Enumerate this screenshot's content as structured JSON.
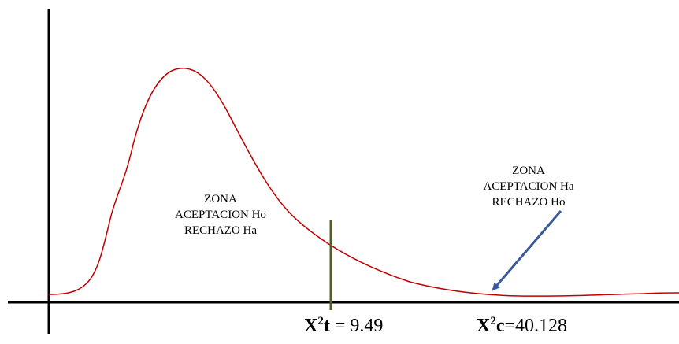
{
  "zones": {
    "acceptance_ho": {
      "line1": "ZONA",
      "line2": "ACEPTACION Ho",
      "line3": "RECHAZO Ha"
    },
    "acceptance_ha": {
      "line1": "ZONA",
      "line2": "ACEPTACION Ha",
      "line3": "RECHAZO Ho"
    }
  },
  "statistics": {
    "critical": {
      "symbol": "X",
      "superscript": "2",
      "subscript_letter": "t",
      "separator": " = ",
      "value": "9.49"
    },
    "computed": {
      "symbol": "X",
      "superscript": "2",
      "subscript_letter": "c",
      "separator": "=",
      "value": "40.128"
    }
  },
  "colors": {
    "curve": "#c00000",
    "critical_line": "#4f6228",
    "arrow": "#3a5a99",
    "axes": "#000000"
  }
}
